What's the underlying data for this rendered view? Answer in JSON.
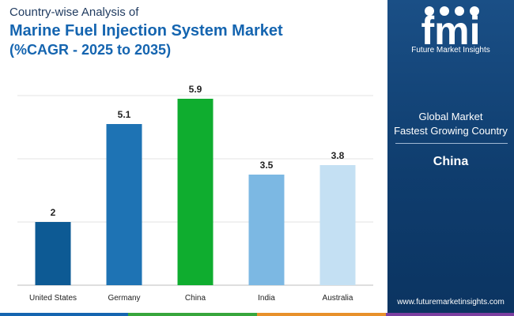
{
  "header": {
    "line1": "Country-wise Analysis of",
    "line2": "Marine Fuel Injection System Market",
    "line3": "(%CAGR - 2025 to 2035)"
  },
  "chart_data": {
    "type": "bar",
    "categories": [
      "United States",
      "Germany",
      "China",
      "India",
      "Australia"
    ],
    "values": [
      2,
      5.1,
      5.9,
      3.5,
      3.8
    ],
    "value_labels": [
      "2",
      "5.1",
      "5.9",
      "3.5",
      "3.8"
    ],
    "colors": [
      "#0d5a94",
      "#1e73b4",
      "#0fad2f",
      "#7cb8e3",
      "#c4e0f3"
    ],
    "ylim": [
      0,
      6
    ],
    "gridlines": [
      2,
      4,
      6
    ],
    "title": "Marine Fuel Injection System Market",
    "xlabel": "",
    "ylabel": ""
  },
  "side_panel": {
    "logo_text": "fmi",
    "logo_subtitle": "Future Market Insights",
    "label_line1": "Global Market",
    "label_line2": "Fastest Growing Country",
    "country": "China",
    "website": "www.futuremarketinsights.com"
  },
  "footer_colors": [
    "#1565b0",
    "#37a63c",
    "#e8912b",
    "#7b3fa0"
  ]
}
